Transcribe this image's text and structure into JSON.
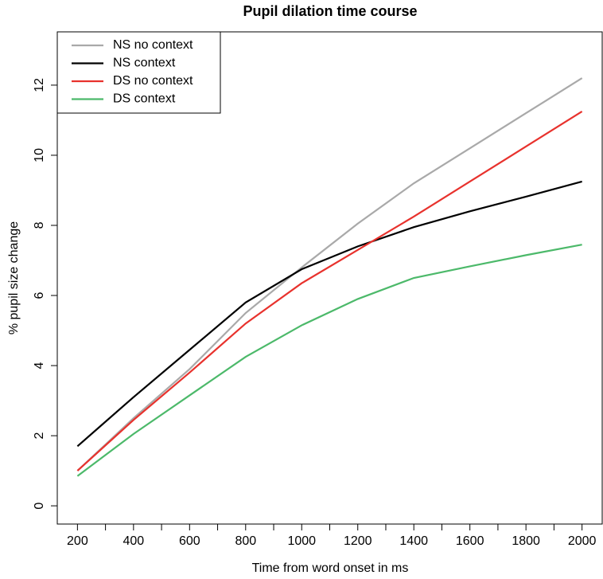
{
  "chart_data": {
    "type": "line",
    "title": "Pupil dilation time course",
    "xlabel": "Time from word onset in ms",
    "ylabel": "% pupil size change",
    "x": [
      200,
      400,
      600,
      800,
      1000,
      1200,
      1400,
      1600,
      1800,
      2000
    ],
    "series": [
      {
        "name": "NS no context",
        "color": "#a9a9a9",
        "values": [
          1.0,
          2.5,
          3.9,
          5.5,
          6.8,
          8.05,
          9.2,
          10.2,
          11.2,
          12.2
        ]
      },
      {
        "name": "NS context",
        "color": "#000000",
        "values": [
          1.7,
          3.1,
          4.45,
          5.8,
          6.75,
          7.4,
          7.95,
          8.4,
          8.82,
          9.25
        ]
      },
      {
        "name": "DS no context",
        "color": "#e8322d",
        "values": [
          1.0,
          2.45,
          3.8,
          5.2,
          6.35,
          7.3,
          8.25,
          9.25,
          10.25,
          11.25
        ]
      },
      {
        "name": "DS context",
        "color": "#4cb96a",
        "values": [
          0.85,
          2.05,
          3.15,
          4.25,
          5.15,
          5.9,
          6.5,
          6.83,
          7.15,
          7.45
        ]
      }
    ],
    "xlim": [
      128,
      2072
    ],
    "ylim": [
      -0.52,
      13.52
    ],
    "xticks": [
      200,
      400,
      600,
      800,
      1000,
      1200,
      1400,
      1600,
      1800,
      2000
    ],
    "xminorticks": [
      300,
      500,
      700,
      900,
      1100,
      1300,
      1500,
      1700,
      1900
    ],
    "yticks": [
      0,
      2,
      4,
      6,
      8,
      10,
      12
    ],
    "legend": "top-left"
  }
}
